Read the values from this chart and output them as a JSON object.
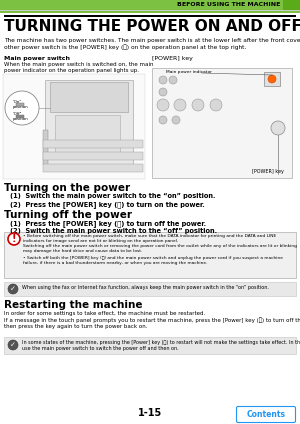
{
  "header_text": "BEFORE USING THE MACHINE",
  "header_bg": "#7dc143",
  "page_bg": "#ffffff",
  "title": "TURNING THE POWER ON AND OFF",
  "intro_text": "The machine has two power switches. The main power switch is at the lower left after the front cover is opened. The\nother power switch is the [POWER] key (ⓨ) on the operation panel at the top right.",
  "main_switch_label": "Main power switch",
  "main_switch_desc": "When the main power switch is switched on, the main\npower indicator on the operation panel lights up.",
  "power_key_label": "[POWER] key",
  "main_power_indicator_label": "Main power indicator",
  "power_key_label2": "[POWER] key",
  "section1_title": "Turning on the power",
  "section1_steps": [
    "(1)  Switch the main power switch to the “on” position.",
    "(2)  Press the [POWER] key (ⓨ) to turn on the power."
  ],
  "section2_title": "Turning off the power",
  "section2_steps": [
    "(1)  Press the [POWER] key (ⓨ) to turn off the power.",
    "(2)  Switch the main power switch to the “off” position."
  ],
  "warning_box_bg": "#f0f0f0",
  "warning_border": "#bbbbbb",
  "warning_icon_color": "#cc0000",
  "warning_bullets": [
    "Before switching off the main power switch, make sure that the DATA indicator for printing and the DATA and LINE\nindicators for image send are not lit or blinking on the operation panel.\nSwitching off the main power switch or removing the power cord from the outlet while any of the indicators are lit or blinking\nmay damage the hard drive and cause data to be lost.",
    "Switch off both the [POWER] key (ⓨ) and the main power switch and unplug the power cord if you suspect a machine\nfailure, if there is a bad thunderstorm nearby, or when you are moving the machine."
  ],
  "note_box_bg": "#e8e8e8",
  "note_border": "#cccccc",
  "note_text": "When using the fax or Internet fax function, always keep the main power switch in the “on” position.",
  "section3_title": "Restarting the machine",
  "section3_intro": "In order for some settings to take effect, the machine must be restarted.\nIf a message in the touch panel prompts you to restart the machine, press the [Power] key (ⓨ) to turn off the power and\nthen press the key again to turn the power back on.",
  "note2_text": "In some states of the machine, pressing the [Power] key (ⓨ) to restart will not make the settings take effect. In this case,\nuse the main power switch to switch the power off and then on.",
  "page_number": "1-15",
  "contents_button_text": "Contents",
  "contents_button_color": "#2196F3"
}
